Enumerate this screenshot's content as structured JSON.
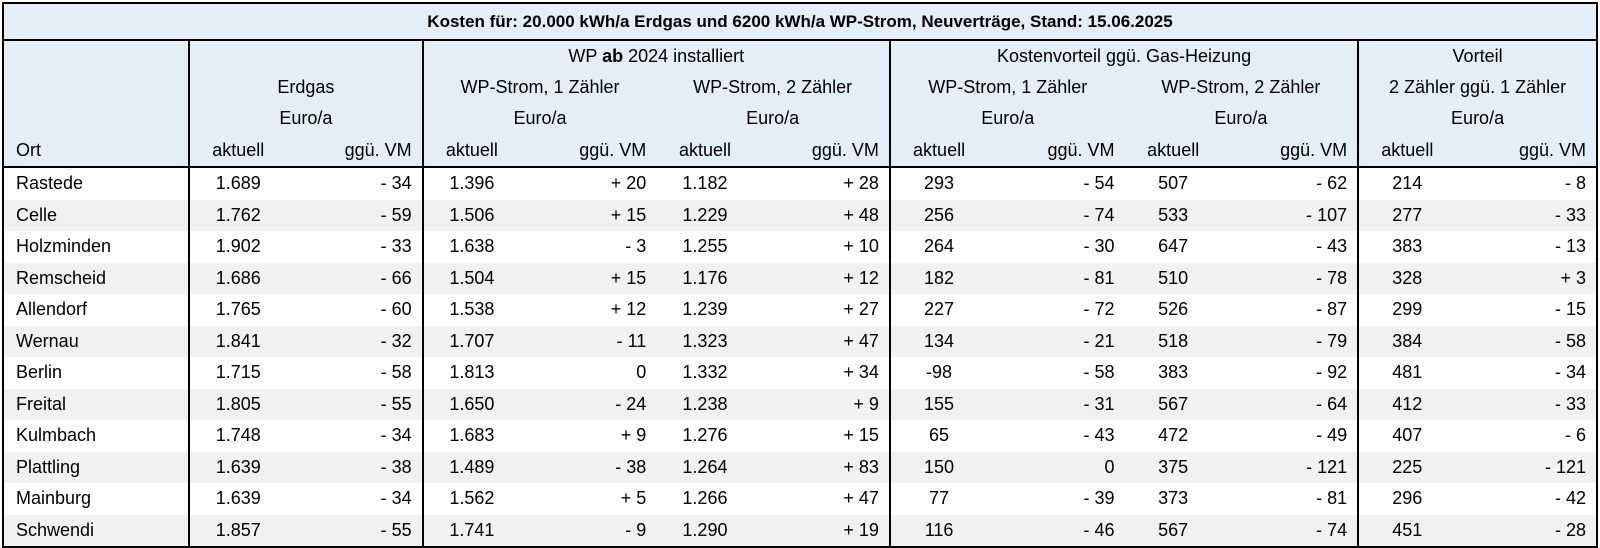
{
  "chart_data": {
    "type": "table",
    "title": "Kosten für: 20.000 kWh/a Erdgas und 6200 kWh/a WP-Strom, Neuverträge, Stand: 15.06.2025",
    "group_headers": {
      "wp_pre": "WP ",
      "wp_bold": "ab",
      "wp_post": " 2024 installiert",
      "kostenvorteil": "Kostenvorteil ggü. Gas-Heizung",
      "vorteil": "Vorteil"
    },
    "sub_headers": {
      "erdgas": "Erdgas",
      "wp1": "WP-Strom, 1 Zähler",
      "wp2": "WP-Strom, 2 Zähler",
      "kv1": "WP-Strom, 1 Zähler",
      "kv2": "WP-Strom, 2 Zähler",
      "v": "2 Zähler ggü. 1 Zähler"
    },
    "unit": "Euro/a",
    "col_ort": "Ort",
    "col_aktuell": "aktuell",
    "col_vm": "ggü. VM",
    "rows": [
      [
        "Rastede",
        "1.689",
        "- 34",
        "1.396",
        "+ 20",
        "1.182",
        "+ 28",
        "293",
        "- 54",
        "507",
        "- 62",
        "214",
        "- 8"
      ],
      [
        "Celle",
        "1.762",
        "- 59",
        "1.506",
        "+ 15",
        "1.229",
        "+ 48",
        "256",
        "- 74",
        "533",
        "- 107",
        "277",
        "- 33"
      ],
      [
        "Holzminden",
        "1.902",
        "- 33",
        "1.638",
        "- 3",
        "1.255",
        "+ 10",
        "264",
        "- 30",
        "647",
        "- 43",
        "383",
        "- 13"
      ],
      [
        "Remscheid",
        "1.686",
        "- 66",
        "1.504",
        "+ 15",
        "1.176",
        "+ 12",
        "182",
        "- 81",
        "510",
        "- 78",
        "328",
        "+ 3"
      ],
      [
        "Allendorf",
        "1.765",
        "- 60",
        "1.538",
        "+ 12",
        "1.239",
        "+ 27",
        "227",
        "- 72",
        "526",
        "- 87",
        "299",
        "- 15"
      ],
      [
        "Wernau",
        "1.841",
        "- 32",
        "1.707",
        "- 11",
        "1.323",
        "+ 47",
        "134",
        "- 21",
        "518",
        "- 79",
        "384",
        "- 58"
      ],
      [
        "Berlin",
        "1.715",
        "- 58",
        "1.813",
        "0",
        "1.332",
        "+ 34",
        "-98",
        "- 58",
        "383",
        "- 92",
        "481",
        "- 34"
      ],
      [
        "Freital",
        "1.805",
        "- 55",
        "1.650",
        "- 24",
        "1.238",
        "+ 9",
        "155",
        "- 31",
        "567",
        "- 64",
        "412",
        "- 33"
      ],
      [
        "Kulmbach",
        "1.748",
        "- 34",
        "1.683",
        "+ 9",
        "1.276",
        "+ 15",
        "65",
        "- 43",
        "472",
        "- 49",
        "407",
        "- 6"
      ],
      [
        "Plattling",
        "1.639",
        "- 38",
        "1.489",
        "- 38",
        "1.264",
        "+ 83",
        "150",
        "0",
        "375",
        "- 121",
        "225",
        "- 121"
      ],
      [
        "Mainburg",
        "1.639",
        "- 34",
        "1.562",
        "+ 5",
        "1.266",
        "+ 47",
        "77",
        "- 39",
        "373",
        "- 81",
        "296",
        "- 42"
      ],
      [
        "Schwendi",
        "1.857",
        "- 55",
        "1.741",
        "- 9",
        "1.290",
        "+ 19",
        "116",
        "- 46",
        "567",
        "- 74",
        "451",
        "- 28"
      ]
    ]
  }
}
